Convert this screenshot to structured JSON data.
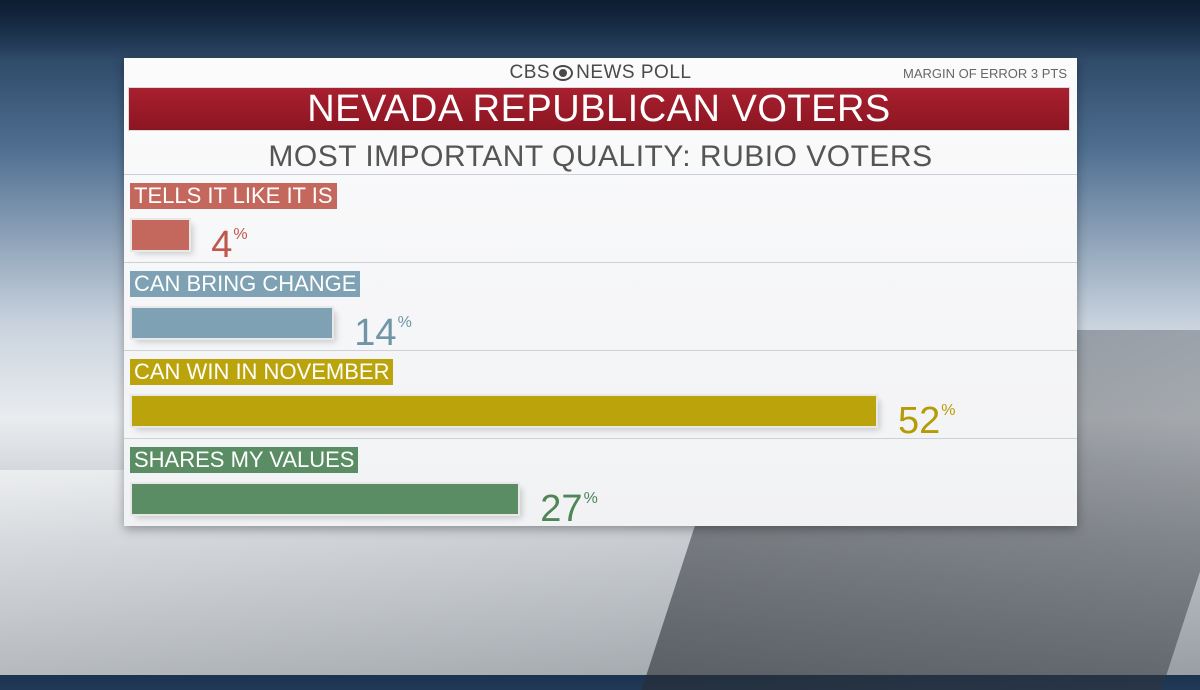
{
  "header": {
    "brand_left": "CBS",
    "brand_right": "NEWS POLL",
    "brand_icon": "cbs-eye-icon",
    "margin_of_error": "MARGIN OF ERROR 3 PTS"
  },
  "chart_data": {
    "type": "bar",
    "orientation": "horizontal",
    "title": "NEVADA REPUBLICAN VOTERS",
    "subtitle": "MOST IMPORTANT QUALITY: RUBIO VOTERS",
    "unit": "%",
    "xlim": [
      0,
      52
    ],
    "categories": [
      "TELLS IT LIKE IT IS",
      "CAN BRING CHANGE",
      "CAN WIN IN NOVEMBER",
      "SHARES MY VALUES"
    ],
    "values": [
      4,
      14,
      52,
      27
    ],
    "value_labels": [
      "4",
      "14",
      "52",
      "27"
    ],
    "colors": [
      "#c4675d",
      "#7ea2b3",
      "#bba30c",
      "#5a8d63"
    ],
    "label_colors": [
      "#c0564c",
      "#6f95a6",
      "#b59c06",
      "#4f8658"
    ]
  }
}
